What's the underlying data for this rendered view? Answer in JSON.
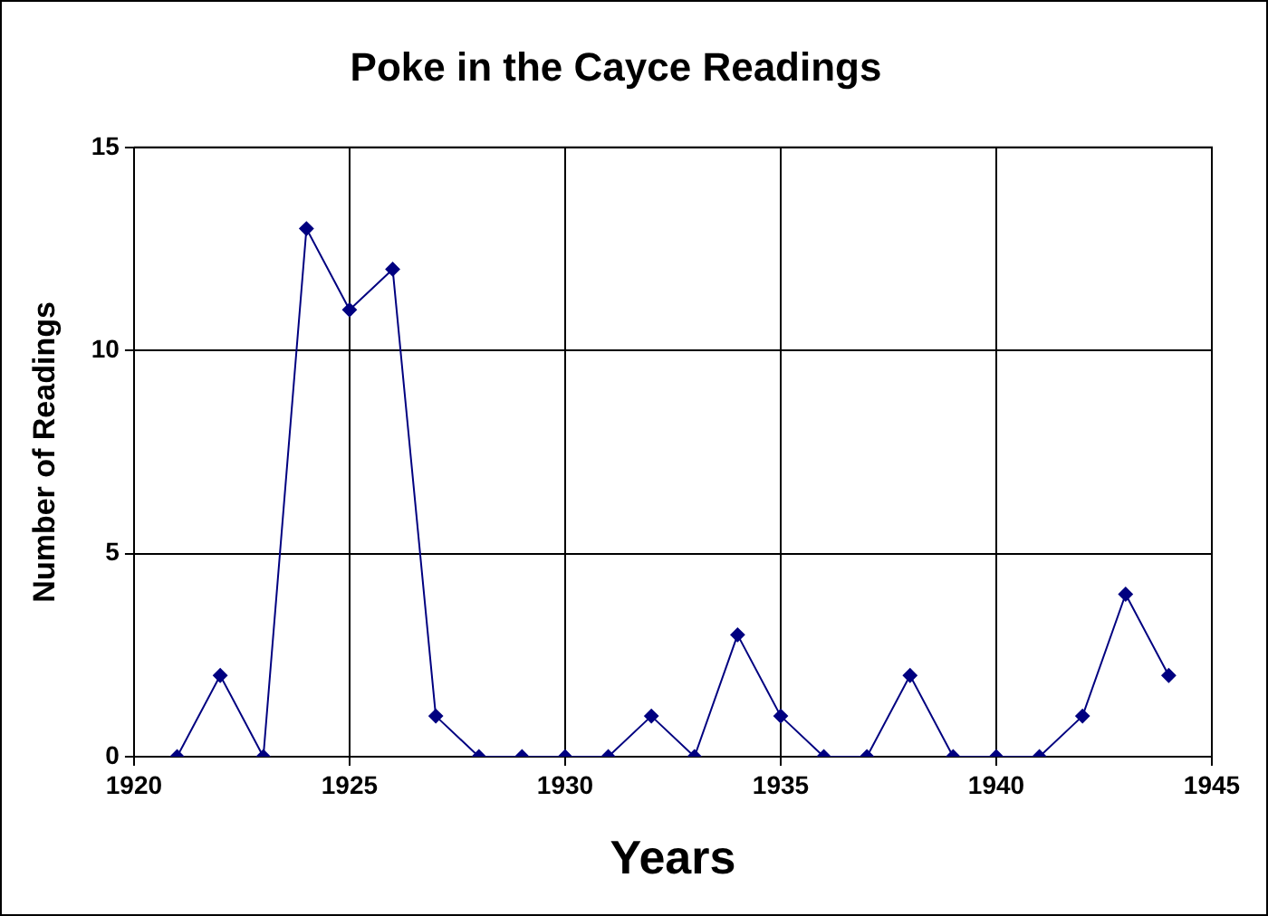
{
  "chart_data": {
    "type": "line",
    "title": "Poke in the Cayce Readings",
    "xlabel": "Years",
    "ylabel": "Number of Readings",
    "x": [
      1921,
      1922,
      1923,
      1924,
      1925,
      1926,
      1927,
      1928,
      1929,
      1930,
      1931,
      1932,
      1933,
      1934,
      1935,
      1936,
      1937,
      1938,
      1939,
      1940,
      1941,
      1942,
      1943,
      1944
    ],
    "series": [
      {
        "color": "#000080",
        "values": [
          0,
          2,
          0,
          13,
          11,
          12,
          1,
          0,
          0,
          0,
          0,
          1,
          0,
          3,
          1,
          0,
          0,
          2,
          0,
          0,
          0,
          1,
          4,
          2
        ]
      }
    ],
    "xlim": [
      1920,
      1945
    ],
    "xticks": [
      1920,
      1925,
      1930,
      1935,
      1940,
      1945
    ],
    "ylim": [
      0,
      15
    ],
    "yticks": [
      0,
      5,
      10,
      15
    ],
    "grid": true,
    "legend": false,
    "marker": "diamond",
    "line_style": "solid"
  }
}
